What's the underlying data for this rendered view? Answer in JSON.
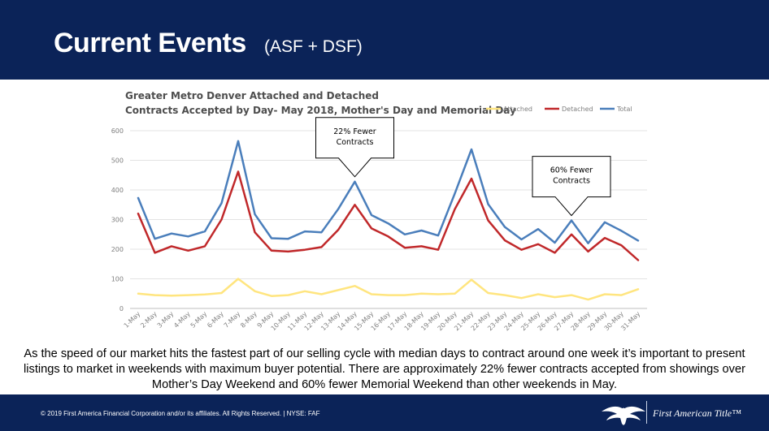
{
  "header": {
    "title": "Current Events",
    "subtitle": "(ASF + DSF)"
  },
  "body_text": "As the speed of our market hits the fastest part of our selling cycle with median days to contract around one week it’s important to present listings to market in weekends with maximum buyer potential. There are approximately 22% fewer contracts accepted from showings over Mother’s Day Weekend and 60% fewer Memorial Weekend than other weekends in May.",
  "footer": {
    "copyright": "© 2019 First America Financial Corporation and/or its affiliates. All Rights Reserved. | NYSE: FAF",
    "brand": "First American Title™",
    "logo_text": "FIRST AMERICAN"
  },
  "colors": {
    "header_bg": "#0b2358",
    "attached": "#ffe57f",
    "detached": "#c0282a",
    "total": "#4a7ebb"
  },
  "chart_data": {
    "type": "line",
    "title_lines": [
      "Greater Metro Denver Attached and Detached",
      "Contracts Accepted by Day- May 2018, Mother's Day and Memorial Day"
    ],
    "xlabel": "",
    "ylabel": "",
    "ylim": [
      0,
      600
    ],
    "yticks": [
      0,
      100,
      200,
      300,
      400,
      500,
      600
    ],
    "grid": true,
    "legend_position": "top-right",
    "categories": [
      "1-May",
      "2-May",
      "3-May",
      "4-May",
      "5-May",
      "6-May",
      "7-May",
      "8-May",
      "9-May",
      "10-May",
      "11-May",
      "12-May",
      "13-May",
      "14-May",
      "15-May",
      "16-May",
      "17-May",
      "18-May",
      "19-May",
      "20-May",
      "21-May",
      "22-May",
      "23-May",
      "24-May",
      "25-May",
      "26-May",
      "27-May",
      "28-May",
      "29-May",
      "30-May",
      "31-May"
    ],
    "series": [
      {
        "name": "Attached",
        "color": "#ffe57f",
        "values": [
          50,
          45,
          43,
          45,
          47,
          52,
          100,
          58,
          42,
          45,
          58,
          48,
          62,
          76,
          48,
          45,
          45,
          50,
          48,
          50,
          97,
          52,
          45,
          35,
          48,
          38,
          45,
          30,
          48,
          45,
          65
        ]
      },
      {
        "name": "Detached",
        "color": "#c0282a",
        "values": [
          320,
          188,
          210,
          195,
          210,
          300,
          462,
          257,
          195,
          192,
          198,
          207,
          265,
          350,
          270,
          243,
          205,
          210,
          198,
          335,
          438,
          297,
          230,
          198,
          217,
          188,
          250,
          192,
          238,
          213,
          163
        ]
      },
      {
        "name": "Total",
        "color": "#4a7ebb",
        "values": [
          373,
          235,
          253,
          243,
          260,
          355,
          565,
          318,
          237,
          235,
          260,
          257,
          335,
          428,
          315,
          287,
          250,
          263,
          246,
          388,
          537,
          352,
          275,
          233,
          268,
          222,
          297,
          220,
          291,
          262,
          229
        ]
      }
    ],
    "annotations": [
      {
        "text_lines": [
          "22% Fewer",
          "Contracts"
        ],
        "target_category": "14-May",
        "target_series": "Total"
      },
      {
        "text_lines": [
          "60% Fewer",
          "Contracts"
        ],
        "target_category": "27-May",
        "target_series": "Total"
      }
    ]
  }
}
